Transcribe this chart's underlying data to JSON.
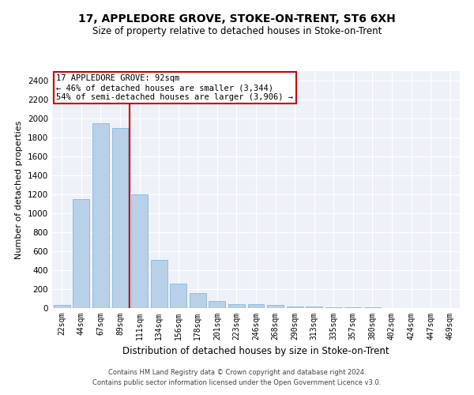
{
  "title": "17, APPLEDORE GROVE, STOKE-ON-TRENT, ST6 6XH",
  "subtitle": "Size of property relative to detached houses in Stoke-on-Trent",
  "xlabel": "Distribution of detached houses by size in Stoke-on-Trent",
  "ylabel": "Number of detached properties",
  "categories": [
    "22sqm",
    "44sqm",
    "67sqm",
    "89sqm",
    "111sqm",
    "134sqm",
    "156sqm",
    "178sqm",
    "201sqm",
    "223sqm",
    "246sqm",
    "268sqm",
    "290sqm",
    "313sqm",
    "335sqm",
    "357sqm",
    "380sqm",
    "402sqm",
    "424sqm",
    "447sqm",
    "469sqm"
  ],
  "values": [
    30,
    1150,
    1950,
    1900,
    1200,
    510,
    260,
    155,
    75,
    40,
    40,
    30,
    15,
    15,
    10,
    5,
    5,
    3,
    2,
    2,
    2
  ],
  "bar_color": "#b8d0e8",
  "bar_edge_color": "#7aafd4",
  "vline_x": 3.5,
  "vline_color": "#cc0000",
  "annotation_text": "17 APPLEDORE GROVE: 92sqm\n← 46% of detached houses are smaller (3,344)\n54% of semi-detached houses are larger (3,906) →",
  "annotation_box_color": "#ffffff",
  "annotation_box_edge_color": "#cc0000",
  "footer_line1": "Contains HM Land Registry data © Crown copyright and database right 2024.",
  "footer_line2": "Contains public sector information licensed under the Open Government Licence v3.0.",
  "ylim": [
    0,
    2500
  ],
  "yticks": [
    0,
    200,
    400,
    600,
    800,
    1000,
    1200,
    1400,
    1600,
    1800,
    2000,
    2200,
    2400
  ],
  "bg_color": "#eef2f8",
  "fig_bg_color": "#ffffff",
  "title_fontsize": 10,
  "subtitle_fontsize": 8.5,
  "ylabel_fontsize": 8,
  "xlabel_fontsize": 8.5,
  "tick_fontsize": 7,
  "ytick_fontsize": 7.5,
  "footer_fontsize": 6.0
}
